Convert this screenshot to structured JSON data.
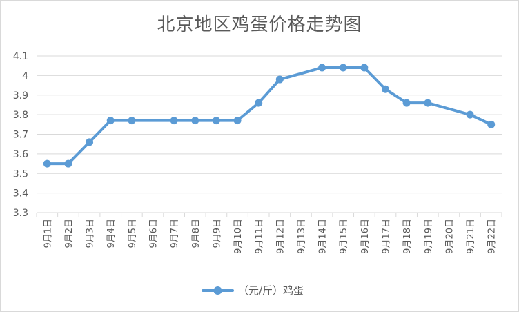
{
  "chart_data": {
    "type": "line",
    "title": "北京地区鸡蛋价格走势图",
    "categories": [
      "9月1日",
      "9月2日",
      "9月3日",
      "9月4日",
      "9月5日",
      "9月6日",
      "9月7日",
      "9月8日",
      "9月9日",
      "9月10日",
      "9月11日",
      "9月12日",
      "9月13日",
      "9月14日",
      "9月15日",
      "9月16日",
      "9月17日",
      "9月18日",
      "9月19日",
      "9月20日",
      "9月21日",
      "9月22日"
    ],
    "series": [
      {
        "name": "（元/斤）鸡蛋",
        "values": [
          3.55,
          3.55,
          3.66,
          3.77,
          3.77,
          null,
          3.77,
          3.77,
          3.77,
          3.77,
          3.86,
          3.98,
          null,
          4.04,
          4.04,
          4.04,
          3.93,
          3.86,
          3.86,
          null,
          3.8,
          3.75
        ],
        "color": "#5b9bd5"
      }
    ],
    "ylim": [
      3.3,
      4.1
    ],
    "yticks": [
      "3.3",
      "3.4",
      "3.5",
      "3.6",
      "3.7",
      "3.8",
      "3.9",
      "4",
      "4.1"
    ],
    "grid": true,
    "legend_position": "bottom",
    "xlabel": "",
    "ylabel": ""
  }
}
